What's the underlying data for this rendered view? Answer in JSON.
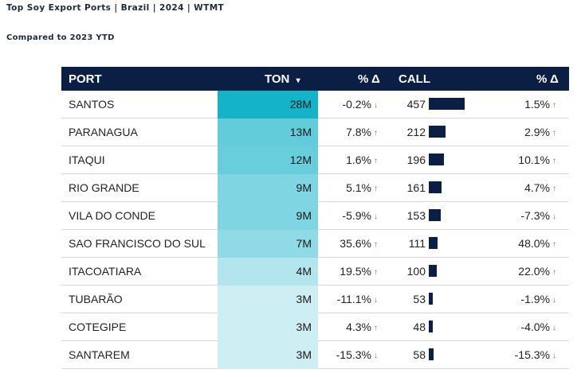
{
  "title": "Top Soy Export Ports | Brazil | 2024 | WTMT",
  "subtitle": "Compared to 2023 YTD",
  "colors": {
    "header_bg": "#0b1f44",
    "up": "#2e9e3a",
    "down": "#e04848",
    "ton_low": "#e6f6f9",
    "ton_high": "#15b3c8"
  },
  "header": {
    "port": "PORT",
    "ton": "TON",
    "sort_icon": "▾",
    "ton_change": "% Δ",
    "call": "CALL",
    "call_change": "% Δ"
  },
  "chart_data": {
    "type": "table",
    "title": "Top Soy Export Ports | Brazil | 2024 | WTMT",
    "subtitle": "Compared to 2023 YTD",
    "columns": [
      "PORT",
      "TON",
      "% Δ",
      "CALL",
      "% Δ"
    ],
    "rows": [
      {
        "port": "SANTOS",
        "ton": "28M",
        "ton_value": 28,
        "ton_change": "-0.2%",
        "ton_dir": "down",
        "call": "457",
        "call_value": 457,
        "call_change": "1.5%",
        "call_dir": "up"
      },
      {
        "port": "PARANAGUA",
        "ton": "13M",
        "ton_value": 13,
        "ton_change": "7.8%",
        "ton_dir": "up",
        "call": "212",
        "call_value": 212,
        "call_change": "2.9%",
        "call_dir": "up"
      },
      {
        "port": "ITAQUI",
        "ton": "12M",
        "ton_value": 12,
        "ton_change": "1.6%",
        "ton_dir": "up",
        "call": "196",
        "call_value": 196,
        "call_change": "10.1%",
        "call_dir": "up"
      },
      {
        "port": "RIO GRANDE",
        "ton": "9M",
        "ton_value": 9,
        "ton_change": "5.1%",
        "ton_dir": "up",
        "call": "161",
        "call_value": 161,
        "call_change": "4.7%",
        "call_dir": "up"
      },
      {
        "port": "VILA DO CONDE",
        "ton": "9M",
        "ton_value": 9,
        "ton_change": "-5.9%",
        "ton_dir": "down",
        "call": "153",
        "call_value": 153,
        "call_change": "-7.3%",
        "call_dir": "down"
      },
      {
        "port": "SAO FRANCISCO DO SUL",
        "ton": "7M",
        "ton_value": 7,
        "ton_change": "35.6%",
        "ton_dir": "up",
        "call": "111",
        "call_value": 111,
        "call_change": "48.0%",
        "call_dir": "up"
      },
      {
        "port": "ITACOATIARA",
        "ton": "4M",
        "ton_value": 4,
        "ton_change": "19.5%",
        "ton_dir": "up",
        "call": "100",
        "call_value": 100,
        "call_change": "22.0%",
        "call_dir": "up"
      },
      {
        "port": "TUBARÃO",
        "ton": "3M",
        "ton_value": 3,
        "ton_change": "-11.1%",
        "ton_dir": "down",
        "call": "53",
        "call_value": 53,
        "call_change": "-1.9%",
        "call_dir": "down"
      },
      {
        "port": "COTEGIPE",
        "ton": "3M",
        "ton_value": 3,
        "ton_change": "4.3%",
        "ton_dir": "up",
        "call": "48",
        "call_value": 48,
        "call_change": "-4.0%",
        "call_dir": "down"
      },
      {
        "port": "SANTAREM",
        "ton": "3M",
        "ton_value": 3,
        "ton_change": "-15.3%",
        "ton_dir": "down",
        "call": "58",
        "call_value": 58,
        "call_change": "-15.3%",
        "call_dir": "down"
      }
    ]
  }
}
